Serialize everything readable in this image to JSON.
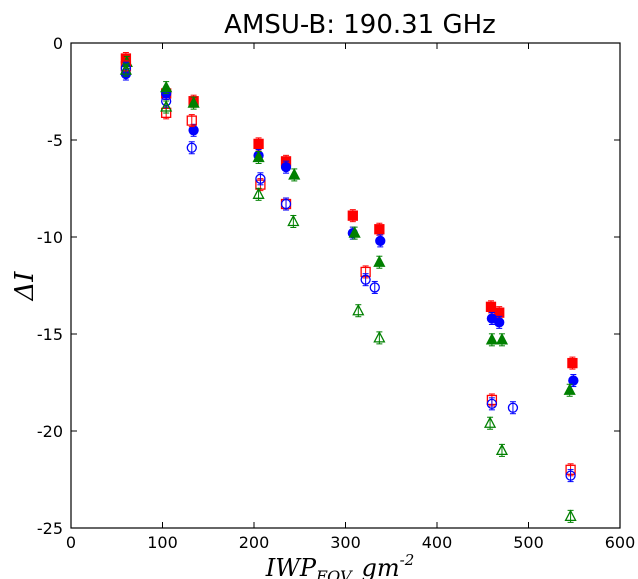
{
  "chart_data": {
    "type": "scatter",
    "title": "AMSU-B: 190.31 GHz",
    "xlabel": "IWP_FOV gm^-2",
    "xlabel_parts": {
      "main": "IWP",
      "sub": "FOV",
      "unit": "gm",
      "sup": "-2"
    },
    "ylabel": "ΔI",
    "xlim": [
      0,
      600
    ],
    "ylim": [
      -25,
      0
    ],
    "xticks": [
      0,
      100,
      200,
      300,
      400,
      500,
      600
    ],
    "yticks": [
      0,
      -5,
      -10,
      -15,
      -20,
      -25
    ],
    "grid": false,
    "legend": "none",
    "series": [
      {
        "marker": "square",
        "filled": true,
        "color": "#ff0000",
        "x": [
          60,
          104,
          134,
          205,
          235,
          308,
          337,
          459,
          468,
          548
        ],
        "y": [
          -0.8,
          -2.6,
          -3.0,
          -5.2,
          -6.1,
          -8.9,
          -9.6,
          -13.6,
          -13.9,
          -16.5
        ]
      },
      {
        "marker": "circle",
        "filled": true,
        "color": "#0000ff",
        "x": [
          60,
          104,
          134,
          205,
          235,
          308,
          338,
          460,
          468,
          549
        ],
        "y": [
          -1.6,
          -2.6,
          -4.5,
          -5.8,
          -6.4,
          -9.8,
          -10.2,
          -14.2,
          -14.4,
          -17.4
        ]
      },
      {
        "marker": "triangle",
        "filled": true,
        "color": "#008000",
        "x": [
          61,
          104,
          134,
          205,
          244,
          310,
          337,
          460,
          471,
          545
        ],
        "y": [
          -1.0,
          -2.3,
          -3.1,
          -5.9,
          -6.8,
          -9.8,
          -11.3,
          -15.3,
          -15.3,
          -17.9
        ]
      },
      {
        "marker": "square",
        "filled": false,
        "color": "#ff0000",
        "x": [
          60,
          104,
          132,
          207,
          235,
          322,
          460,
          546
        ],
        "y": [
          -1.2,
          -3.6,
          -4.0,
          -7.3,
          -8.3,
          -11.8,
          -18.4,
          -22.0
        ]
      },
      {
        "marker": "circle",
        "filled": false,
        "color": "#0000ff",
        "x": [
          60,
          104,
          132,
          207,
          235,
          322,
          332,
          460,
          483,
          546
        ],
        "y": [
          -1.3,
          -3.0,
          -5.4,
          -7.0,
          -8.3,
          -12.2,
          -12.6,
          -18.6,
          -18.8,
          -22.3
        ]
      },
      {
        "marker": "triangle",
        "filled": false,
        "color": "#008000",
        "x": [
          60,
          104,
          205,
          243,
          314,
          337,
          458,
          471,
          546
        ],
        "y": [
          -1.4,
          -3.3,
          -7.8,
          -9.2,
          -13.8,
          -15.2,
          -19.6,
          -21.0,
          -24.4
        ]
      }
    ]
  }
}
